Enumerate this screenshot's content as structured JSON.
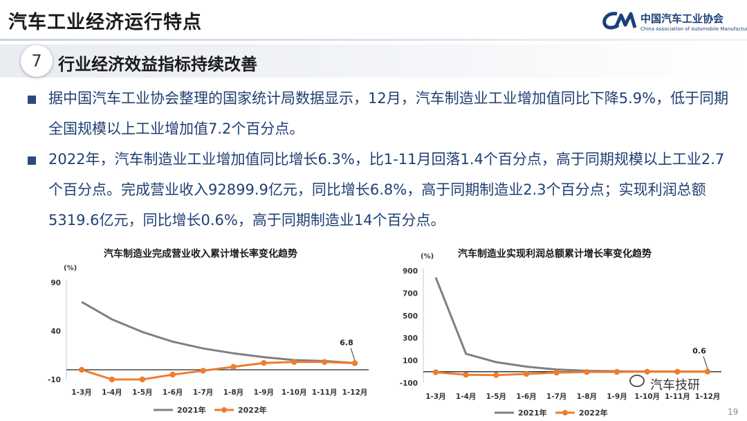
{
  "header": {
    "title": "汽车工业经济运行特点",
    "logo_cn": "中国汽车工业协会",
    "logo_en": "China Association of Automobile Manufacturers"
  },
  "section": {
    "number": "7",
    "title": "行业经济效益指标持续改善"
  },
  "bullets": [
    "据中国汽车工业协会整理的国家统计局数据显示，12月，汽车制造业工业增加值同比下降5.9%，低于同期全国规模以上工业增加值7.2个百分点。",
    "2022年，汽车制造业工业增加值同比增长6.3%，比1-11月回落1.4个百分点，高于同期规模以上工业2.7个百分点。完成营业收入92899.9亿元，同比增长6.8%，高于同期制造业2.3个百分点；实现利润总额5319.6亿元，同比增长0.6%，高于同期制造业14个百分点。"
  ],
  "chart_data": [
    {
      "type": "line",
      "title": "汽车制造业完成营业收入累计增长率变化趋势",
      "unit": "(%)",
      "categories": [
        "1-3月",
        "1-4月",
        "1-5月",
        "1-6月",
        "1-7月",
        "1-8月",
        "1-9月",
        "1-10月",
        "1-11月",
        "1-12月"
      ],
      "yticks": [
        90,
        40,
        -10
      ],
      "ylim": [
        -10,
        90
      ],
      "series": [
        {
          "name": "2021年",
          "color": "#7f7f7f",
          "values": [
            70,
            52,
            39,
            29,
            22,
            17,
            13,
            10,
            9,
            7
          ]
        },
        {
          "name": "2022年",
          "color": "#ed7d31",
          "values": [
            0,
            -10,
            -10,
            -5,
            -1,
            3,
            7,
            8,
            8,
            6.8
          ]
        }
      ],
      "data_label": "6.8",
      "legend": "bottom"
    },
    {
      "type": "line",
      "title": "汽车制造业实现利润总额累计增长率变化趋势",
      "unit": "(%)",
      "categories": [
        "1-3月",
        "1-4月",
        "1-5月",
        "1-6月",
        "1-7月",
        "1-8月",
        "1-9月",
        "1-10月",
        "1-11月",
        "1-12月"
      ],
      "yticks": [
        900,
        700,
        500,
        300,
        100,
        -100
      ],
      "ylim": [
        -100,
        900
      ],
      "series": [
        {
          "name": "2021年",
          "color": "#7f7f7f",
          "values": [
            840,
            160,
            85,
            45,
            20,
            8,
            4,
            2,
            1,
            0.5
          ]
        },
        {
          "name": "2022年",
          "color": "#ed7d31",
          "values": [
            -5,
            -28,
            -30,
            -20,
            -8,
            -3,
            -2,
            0,
            0,
            0.6
          ]
        }
      ],
      "data_label": "0.6",
      "legend": "bottom"
    }
  ],
  "watermark": {
    "text": "汽车技研"
  },
  "page_number": "19"
}
